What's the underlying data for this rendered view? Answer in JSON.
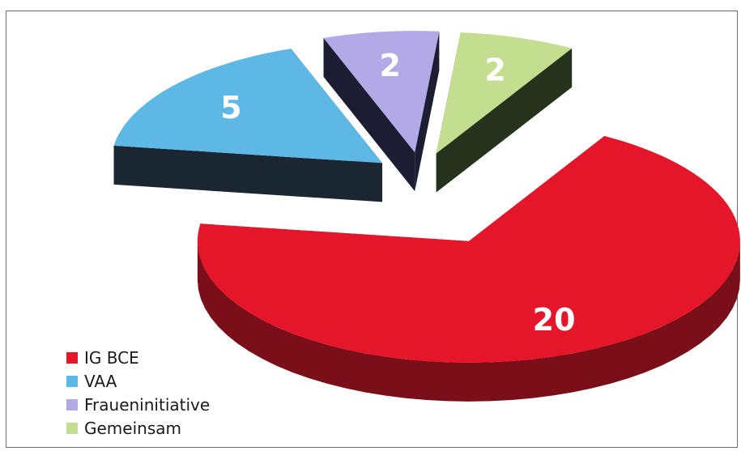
{
  "chart_data": {
    "type": "pie",
    "title": "",
    "categories": [
      "IG BCE",
      "VAA",
      "Fraueninitiative",
      "Gemeinsam"
    ],
    "values": [
      20,
      5,
      2,
      2
    ],
    "labels": [
      "20",
      "5",
      "2",
      "2"
    ],
    "exploded": true,
    "three_d": true,
    "legend_position": "bottom-left",
    "colors": [
      "#e5162a",
      "#5eb8e6",
      "#b3a9e6",
      "#c3de8f"
    ],
    "side_colors": [
      "#7a0f19",
      "#1a2733",
      "#1c1d33",
      "#25331c"
    ]
  }
}
